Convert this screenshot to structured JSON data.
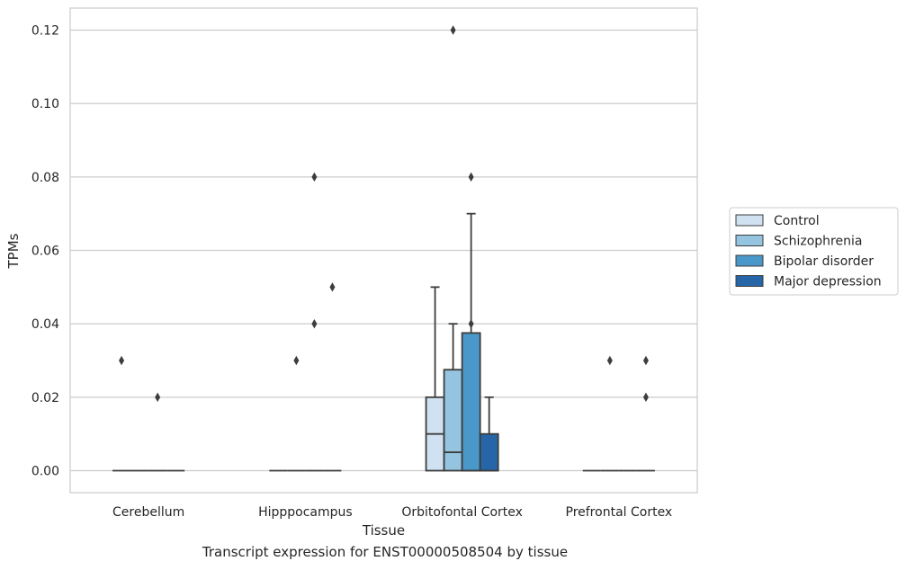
{
  "chart_data": {
    "type": "boxplot",
    "title": "",
    "caption": "Transcript expression for ENST00000508504 by tissue",
    "xlabel": "Tissue",
    "ylabel": "TPMs",
    "ylim": [
      -0.006,
      0.126
    ],
    "yticks": [
      "0.00",
      "0.02",
      "0.04",
      "0.06",
      "0.08",
      "0.10",
      "0.12"
    ],
    "ytick_values": [
      0,
      0.02,
      0.04,
      0.06,
      0.08,
      0.1,
      0.12
    ],
    "grid": "horizontal",
    "legend_placement": "right",
    "categories": [
      "Cerebellum",
      "Hipppocampus",
      "Orbitofontal Cortex",
      "Prefrontal Cortex"
    ],
    "series": [
      {
        "name": "Control",
        "color": "#d0e1f2",
        "boxes": [
          {
            "whislo": 0,
            "q1": 0,
            "med": 0,
            "q3": 0,
            "whishi": 0,
            "fliers": [
              0.03
            ]
          },
          {
            "whislo": 0,
            "q1": 0,
            "med": 0,
            "q3": 0,
            "whishi": 0,
            "fliers": []
          },
          {
            "whislo": 0,
            "q1": 0,
            "med": 0.01,
            "q3": 0.02,
            "whishi": 0.05,
            "fliers": []
          },
          {
            "whislo": 0,
            "q1": 0,
            "med": 0,
            "q3": 0,
            "whishi": 0,
            "fliers": []
          }
        ]
      },
      {
        "name": "Schizophrenia",
        "color": "#94c4df",
        "boxes": [
          {
            "whislo": 0,
            "q1": 0,
            "med": 0,
            "q3": 0,
            "whishi": 0,
            "fliers": []
          },
          {
            "whislo": 0,
            "q1": 0,
            "med": 0,
            "q3": 0,
            "whishi": 0,
            "fliers": [
              0.03
            ]
          },
          {
            "whislo": 0,
            "q1": 0,
            "med": 0.005,
            "q3": 0.0275,
            "whishi": 0.04,
            "fliers": [
              0.12
            ]
          },
          {
            "whislo": 0,
            "q1": 0,
            "med": 0,
            "q3": 0,
            "whishi": 0,
            "fliers": [
              0.03
            ]
          }
        ]
      },
      {
        "name": "Bipolar disorder",
        "color": "#4a98c9",
        "boxes": [
          {
            "whislo": 0,
            "q1": 0,
            "med": 0,
            "q3": 0,
            "whishi": 0,
            "fliers": [
              0.02
            ]
          },
          {
            "whislo": 0,
            "q1": 0,
            "med": 0,
            "q3": 0,
            "whishi": 0,
            "fliers": [
              0.08,
              0.04
            ]
          },
          {
            "whislo": 0,
            "q1": 0,
            "med": 0,
            "q3": 0.0375,
            "whishi": 0.07,
            "fliers": [
              0.08,
              0.04
            ]
          },
          {
            "whislo": 0,
            "q1": 0,
            "med": 0,
            "q3": 0,
            "whishi": 0,
            "fliers": []
          }
        ]
      },
      {
        "name": "Major depression",
        "color": "#2666a8",
        "boxes": [
          {
            "whislo": 0,
            "q1": 0,
            "med": 0,
            "q3": 0,
            "whishi": 0,
            "fliers": []
          },
          {
            "whislo": 0,
            "q1": 0,
            "med": 0,
            "q3": 0,
            "whishi": 0,
            "fliers": [
              0.05
            ]
          },
          {
            "whislo": 0,
            "q1": 0,
            "med": 0,
            "q3": 0.01,
            "whishi": 0.02,
            "fliers": []
          },
          {
            "whislo": 0,
            "q1": 0,
            "med": 0,
            "q3": 0,
            "whishi": 0,
            "fliers": [
              0.03,
              0.02
            ]
          }
        ]
      }
    ]
  }
}
